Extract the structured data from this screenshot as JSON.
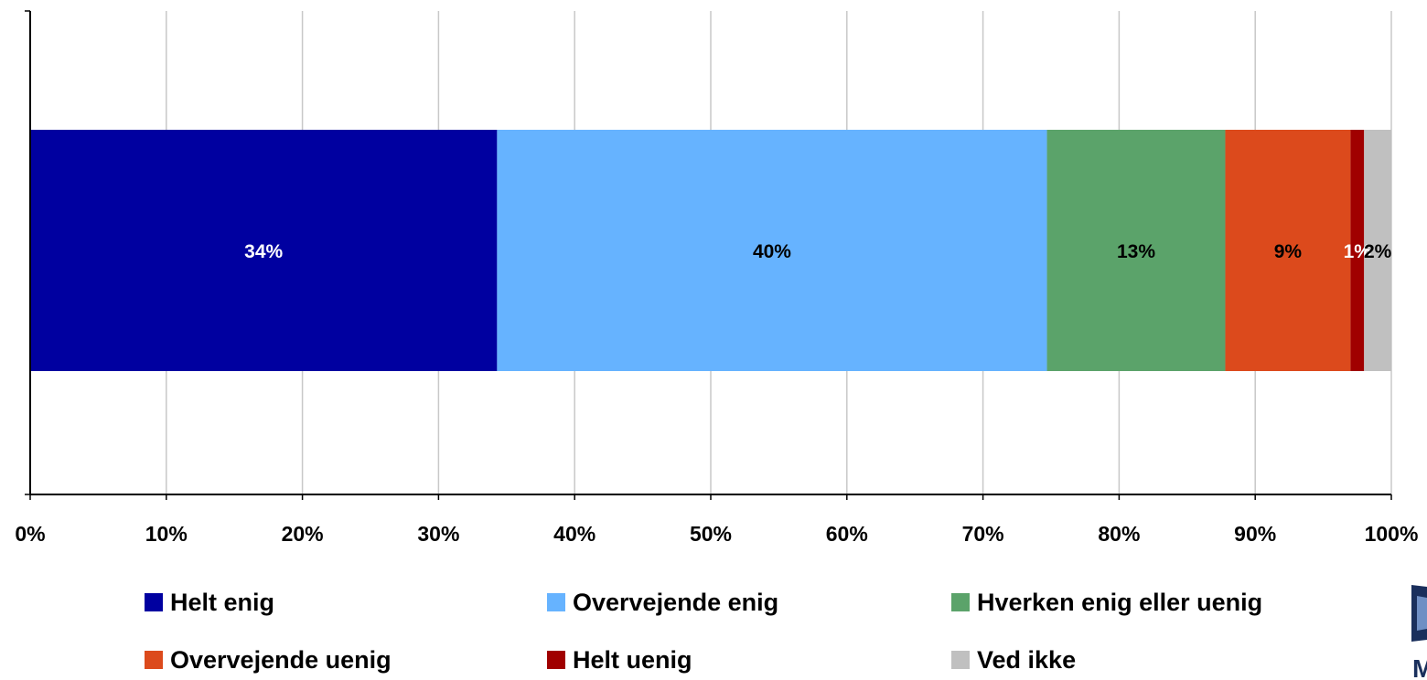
{
  "chart_data": {
    "type": "bar",
    "orientation": "horizontal",
    "stacking": "percent",
    "title": "",
    "xlabel": "",
    "ylabel": "",
    "xlim": [
      0,
      100
    ],
    "grid": "vertical",
    "x_ticks": [
      "0%",
      "10%",
      "20%",
      "30%",
      "40%",
      "50%",
      "60%",
      "70%",
      "80%",
      "90%",
      "100%"
    ],
    "legend_position": "bottom",
    "series": [
      {
        "name": "Helt enig",
        "value": 34.3,
        "label": "34%",
        "color": "#0000A0",
        "label_color": "#ffffff"
      },
      {
        "name": "Overvejende enig",
        "value": 40.4,
        "label": "40%",
        "color": "#66B3FF",
        "label_color": "#000000"
      },
      {
        "name": "Hverken enig eller uenig",
        "value": 13.1,
        "label": "13%",
        "color": "#5BA36A",
        "label_color": "#000000"
      },
      {
        "name": "Overvejende uenig",
        "value": 9.2,
        "label": "9%",
        "color": "#DC4A1C",
        "label_color": "#000000"
      },
      {
        "name": "Helt uenig",
        "value": 1.0,
        "label": "1%",
        "color": "#A00000",
        "label_color": "#ffffff"
      },
      {
        "name": "Ved ikke",
        "value": 2.0,
        "label": "2%",
        "color": "#C0C0C0",
        "label_color": "#000000"
      }
    ]
  },
  "logo": {
    "text": "M",
    "color": "#1a2f5c"
  }
}
